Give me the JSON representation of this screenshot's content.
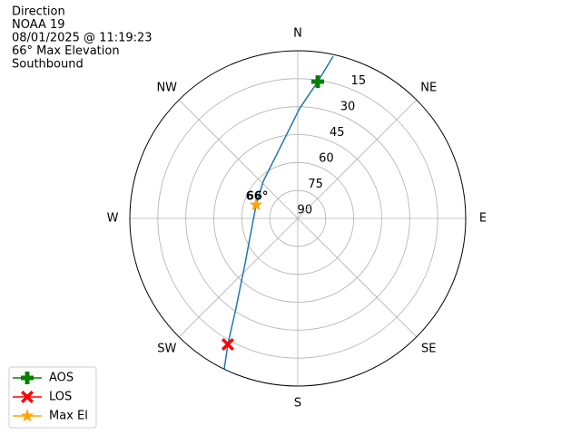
{
  "chart_data": {
    "type": "polar",
    "title_lines": [
      "Direction",
      "NOAA 19",
      "08/01/2025 @ 11:19:23",
      "66° Max Elevation",
      "Southbound"
    ],
    "theta_direction": "clockwise",
    "theta_zero": "N",
    "thetaticks": [
      {
        "value": 0,
        "label": "N"
      },
      {
        "value": 45,
        "label": "NE"
      },
      {
        "value": 90,
        "label": "E"
      },
      {
        "value": 135,
        "label": "SE"
      },
      {
        "value": 180,
        "label": "S"
      },
      {
        "value": 225,
        "label": "SW"
      },
      {
        "value": 270,
        "label": "W"
      },
      {
        "value": 315,
        "label": "NW"
      }
    ],
    "rlim": [
      90,
      0
    ],
    "rticks": [
      15,
      30,
      45,
      60,
      75,
      90
    ],
    "grid": true,
    "track": {
      "color": "#1f77b4",
      "azimuth": [
        12.3,
        8.3,
        0.9,
        347.5,
        317.2,
        288,
        229.8,
        214.5,
        209,
        206
      ],
      "elevation": [
        0.9,
        15.8,
        31.1,
        49.6,
        62.8,
        66.5,
        53.1,
        31.6,
        12.7,
        0.1
      ]
    },
    "series": [
      {
        "name": "AOS",
        "color": "#008000",
        "marker": "plus",
        "azimuth": 8.3,
        "elevation": 15.8
      },
      {
        "name": "LOS",
        "color": "#ff0000",
        "marker": "x",
        "azimuth": 209,
        "elevation": 12.7
      },
      {
        "name": "Max El",
        "color": "#ffa500",
        "marker": "star",
        "azimuth": 288,
        "elevation": 66.5
      }
    ],
    "annotation": {
      "text": "66°",
      "azimuth": 288,
      "elevation": 66.5
    },
    "legend": "lower left"
  }
}
